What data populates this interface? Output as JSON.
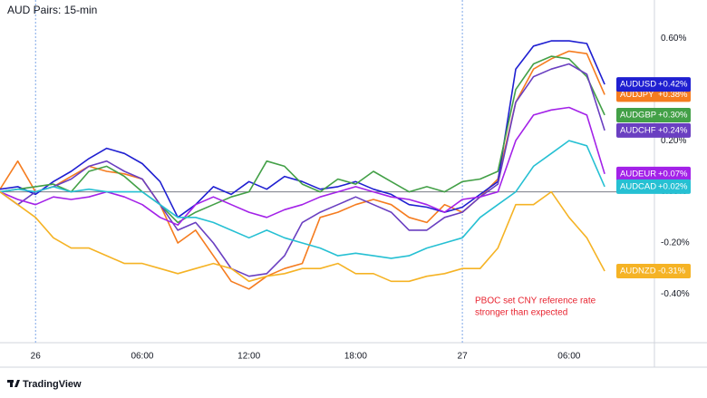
{
  "chart_data": {
    "type": "line",
    "title": "AUD Pairs: 15-min",
    "brand": "TradingView",
    "annotation": [
      "PBOC set CNY reference rate",
      "stronger than expected"
    ],
    "x": [
      -2,
      -1,
      0,
      1,
      2,
      3,
      4,
      5,
      6,
      7,
      8,
      9,
      10,
      11,
      12,
      13,
      14,
      15,
      16,
      17,
      18,
      19,
      20,
      21,
      22,
      23,
      24,
      25,
      26,
      27,
      28,
      29,
      30,
      31,
      32
    ],
    "xlim": [
      -2,
      34.8
    ],
    "xticks": [
      {
        "value": 0,
        "label": "26"
      },
      {
        "value": 6,
        "label": "06:00"
      },
      {
        "value": 12,
        "label": "12:00"
      },
      {
        "value": 18,
        "label": "18:00"
      },
      {
        "value": 24,
        "label": "27"
      },
      {
        "value": 30,
        "label": "06:00"
      }
    ],
    "ylim": [
      -0.59,
      0.75
    ],
    "yticks": [
      {
        "value": 0.6,
        "label": "0.60%"
      },
      {
        "value": 0.2,
        "label": "0.20%"
      },
      {
        "value": 0,
        "label": "0.00%"
      },
      {
        "value": -0.2,
        "label": "-0.20%"
      },
      {
        "value": -0.4,
        "label": "-0.40%"
      }
    ],
    "series": [
      {
        "name": "AUDJPY",
        "color": "#f57c1f",
        "last_value_label": "+0.38%",
        "values": [
          0.01,
          0.12,
          0.0,
          0.02,
          0.06,
          0.1,
          0.08,
          0.07,
          0.05,
          -0.05,
          -0.2,
          -0.15,
          -0.25,
          -0.35,
          -0.38,
          -0.33,
          -0.3,
          -0.28,
          -0.1,
          -0.08,
          -0.05,
          -0.03,
          -0.05,
          -0.1,
          -0.12,
          -0.05,
          -0.08,
          -0.02,
          0.05,
          0.35,
          0.48,
          0.52,
          0.55,
          0.54,
          0.38
        ]
      },
      {
        "name": "AUDUSD",
        "color": "#1f1fd1",
        "last_value_label": "+0.42%",
        "values": [
          0.01,
          0.02,
          -0.01,
          0.04,
          0.08,
          0.13,
          0.17,
          0.15,
          0.11,
          0.04,
          -0.1,
          -0.05,
          0.02,
          -0.01,
          0.04,
          0.01,
          0.06,
          0.04,
          0.01,
          0.02,
          0.04,
          0.01,
          -0.01,
          -0.05,
          -0.06,
          -0.08,
          -0.06,
          -0.01,
          0.04,
          0.48,
          0.57,
          0.59,
          0.59,
          0.58,
          0.42
        ]
      },
      {
        "name": "AUDGBP",
        "color": "#43a047",
        "last_value_label": "+0.30%",
        "values": [
          0.0,
          0.01,
          0.02,
          0.03,
          0.0,
          0.08,
          0.1,
          0.06,
          0.0,
          -0.05,
          -0.12,
          -0.08,
          -0.05,
          -0.02,
          0.0,
          0.12,
          0.1,
          0.03,
          0.0,
          0.05,
          0.03,
          0.08,
          0.04,
          0.0,
          0.02,
          0.0,
          0.04,
          0.05,
          0.08,
          0.4,
          0.5,
          0.53,
          0.52,
          0.45,
          0.3
        ]
      },
      {
        "name": "AUDCHF",
        "color": "#6a3fc1",
        "last_value_label": "+0.24%",
        "values": [
          0.0,
          -0.05,
          0.0,
          0.02,
          0.05,
          0.1,
          0.12,
          0.08,
          0.05,
          -0.05,
          -0.15,
          -0.12,
          -0.2,
          -0.3,
          -0.33,
          -0.32,
          -0.25,
          -0.12,
          -0.08,
          -0.05,
          -0.02,
          -0.05,
          -0.08,
          -0.15,
          -0.15,
          -0.1,
          -0.08,
          -0.02,
          0.03,
          0.35,
          0.45,
          0.48,
          0.5,
          0.46,
          0.24
        ]
      },
      {
        "name": "AUDEUR",
        "color": "#a322e8",
        "last_value_label": "+0.07%",
        "values": [
          0.0,
          -0.03,
          -0.05,
          -0.02,
          -0.03,
          -0.02,
          0.0,
          -0.02,
          -0.05,
          -0.1,
          -0.13,
          -0.05,
          -0.02,
          -0.05,
          -0.08,
          -0.1,
          -0.07,
          -0.05,
          -0.02,
          0.0,
          0.02,
          0.0,
          -0.02,
          -0.03,
          -0.05,
          -0.08,
          -0.03,
          -0.02,
          0.0,
          0.2,
          0.3,
          0.32,
          0.33,
          0.3,
          0.07
        ]
      },
      {
        "name": "AUDCAD",
        "color": "#26c0d3",
        "last_value_label": "+0.02%",
        "values": [
          0.0,
          0.01,
          0.0,
          0.02,
          0.0,
          0.01,
          0.0,
          0.0,
          0.0,
          -0.05,
          -0.1,
          -0.1,
          -0.12,
          -0.15,
          -0.18,
          -0.15,
          -0.18,
          -0.2,
          -0.22,
          -0.25,
          -0.24,
          -0.25,
          -0.26,
          -0.25,
          -0.22,
          -0.2,
          -0.18,
          -0.1,
          -0.05,
          0.0,
          0.1,
          0.15,
          0.2,
          0.18,
          0.02
        ]
      },
      {
        "name": "AUDNZD",
        "color": "#f5b325",
        "last_value_label": "-0.31%",
        "values": [
          0.0,
          -0.05,
          -0.1,
          -0.18,
          -0.22,
          -0.22,
          -0.25,
          -0.28,
          -0.28,
          -0.3,
          -0.32,
          -0.3,
          -0.28,
          -0.3,
          -0.35,
          -0.33,
          -0.32,
          -0.3,
          -0.3,
          -0.28,
          -0.32,
          -0.32,
          -0.35,
          -0.35,
          -0.33,
          -0.32,
          -0.3,
          -0.3,
          -0.22,
          -0.05,
          -0.05,
          0.0,
          -0.1,
          -0.18,
          -0.31
        ]
      }
    ]
  }
}
